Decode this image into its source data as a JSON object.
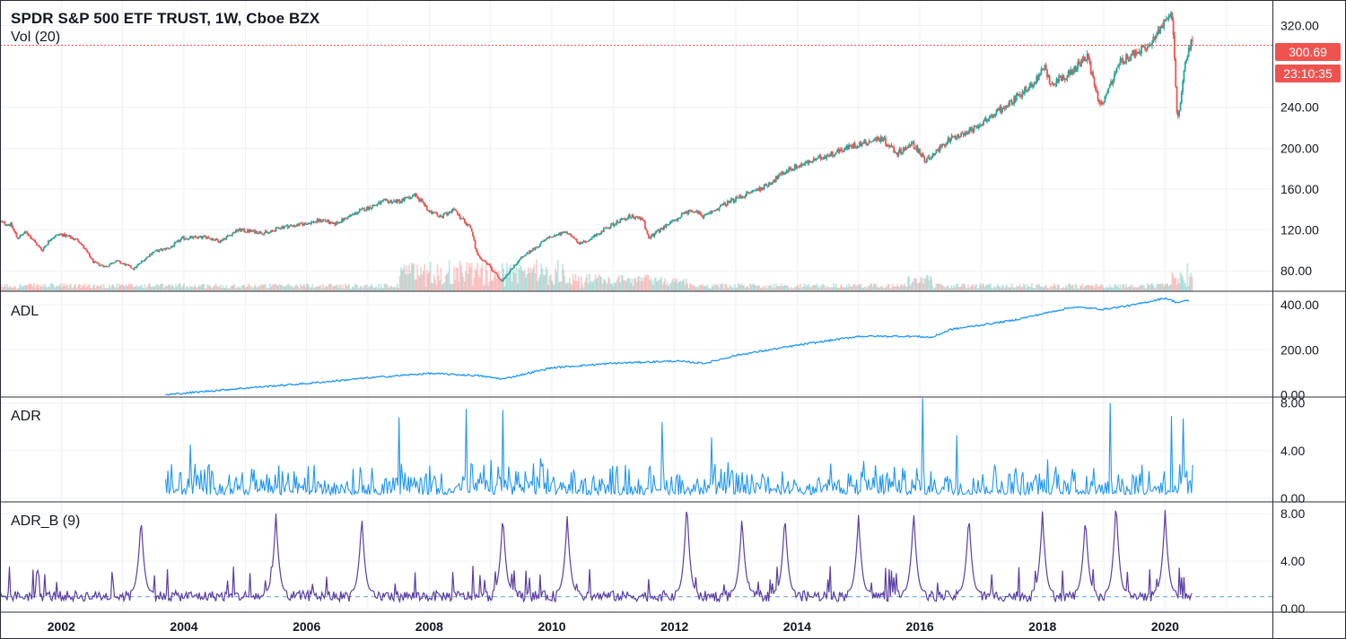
{
  "header": {
    "title": "SPDR S&P 500 ETF TRUST, 1W, Cboe BZX",
    "volume_indicator": "Vol (20)"
  },
  "price_tags": {
    "last_price": "300.69",
    "countdown": "23:10:35",
    "color": "#ef5350"
  },
  "colors": {
    "up": "#26a69a",
    "down": "#ef5350",
    "adl_line": "#2196f3",
    "adr_line": "#2196f3",
    "adrb_line": "#5b3fa3",
    "adrb_baseline": "#5b9bd5",
    "grid": "#edf0f5",
    "border": "#2a2e39"
  },
  "chart_data": [
    {
      "type": "candlestick",
      "name": "price",
      "interval": "1W",
      "ylim": [
        60,
        345
      ],
      "yticks": [
        "80.00",
        "120.00",
        "160.00",
        "200.00",
        "240.00",
        "320.00"
      ],
      "anchors": [
        [
          2001.0,
          128
        ],
        [
          2001.2,
          125
        ],
        [
          2001.3,
          112
        ],
        [
          2001.45,
          118
        ],
        [
          2001.7,
          100
        ],
        [
          2001.85,
          112
        ],
        [
          2002.0,
          116
        ],
        [
          2002.3,
          110
        ],
        [
          2002.55,
          88
        ],
        [
          2002.75,
          84
        ],
        [
          2002.9,
          90
        ],
        [
          2003.1,
          85
        ],
        [
          2003.2,
          82
        ],
        [
          2003.5,
          98
        ],
        [
          2003.8,
          103
        ],
        [
          2004.0,
          112
        ],
        [
          2004.4,
          113
        ],
        [
          2004.6,
          109
        ],
        [
          2004.9,
          120
        ],
        [
          2005.4,
          117
        ],
        [
          2005.6,
          123
        ],
        [
          2005.9,
          125
        ],
        [
          2006.3,
          130
        ],
        [
          2006.45,
          125
        ],
        [
          2006.9,
          139
        ],
        [
          2007.3,
          148
        ],
        [
          2007.55,
          148
        ],
        [
          2007.8,
          155
        ],
        [
          2008.0,
          140
        ],
        [
          2008.2,
          132
        ],
        [
          2008.4,
          140
        ],
        [
          2008.7,
          122
        ],
        [
          2008.8,
          95
        ],
        [
          2008.95,
          88
        ],
        [
          2009.2,
          70
        ],
        [
          2009.5,
          92
        ],
        [
          2009.8,
          105
        ],
        [
          2010.0,
          114
        ],
        [
          2010.3,
          118
        ],
        [
          2010.45,
          106
        ],
        [
          2010.7,
          113
        ],
        [
          2010.9,
          122
        ],
        [
          2011.3,
          134
        ],
        [
          2011.5,
          130
        ],
        [
          2011.6,
          112
        ],
        [
          2011.9,
          125
        ],
        [
          2012.3,
          140
        ],
        [
          2012.5,
          133
        ],
        [
          2012.8,
          144
        ],
        [
          2013.0,
          150
        ],
        [
          2013.5,
          163
        ],
        [
          2013.9,
          180
        ],
        [
          2014.3,
          188
        ],
        [
          2014.8,
          200
        ],
        [
          2015.4,
          210
        ],
        [
          2015.65,
          195
        ],
        [
          2015.9,
          205
        ],
        [
          2016.1,
          188
        ],
        [
          2016.5,
          208
        ],
        [
          2016.9,
          220
        ],
        [
          2017.4,
          240
        ],
        [
          2017.9,
          265
        ],
        [
          2018.05,
          280
        ],
        [
          2018.15,
          263
        ],
        [
          2018.5,
          275
        ],
        [
          2018.75,
          290
        ],
        [
          2018.97,
          240
        ],
        [
          2019.3,
          285
        ],
        [
          2019.6,
          295
        ],
        [
          2019.8,
          302
        ],
        [
          2020.1,
          335
        ],
        [
          2020.15,
          320
        ],
        [
          2020.22,
          225
        ],
        [
          2020.35,
          285
        ],
        [
          2020.45,
          305
        ]
      ],
      "volume": {
        "name": "Vol (20)",
        "ylim_scale": 1.0
      },
      "last_price": 300.69
    },
    {
      "type": "line",
      "name": "ADL",
      "ylim": [
        -10,
        460
      ],
      "yticks": [
        "400.00",
        "200.00",
        "0.00"
      ],
      "x_start": 2003.7,
      "anchors": [
        [
          2003.7,
          0
        ],
        [
          2005.0,
          30
        ],
        [
          2006.0,
          50
        ],
        [
          2007.0,
          75
        ],
        [
          2008.0,
          95
        ],
        [
          2008.8,
          85
        ],
        [
          2009.2,
          70
        ],
        [
          2010.0,
          120
        ],
        [
          2011.0,
          140
        ],
        [
          2012.0,
          150
        ],
        [
          2012.5,
          140
        ],
        [
          2013.0,
          175
        ],
        [
          2014.0,
          220
        ],
        [
          2015.0,
          260
        ],
        [
          2015.9,
          260
        ],
        [
          2016.2,
          255
        ],
        [
          2016.5,
          290
        ],
        [
          2017.5,
          330
        ],
        [
          2018.5,
          390
        ],
        [
          2019.0,
          380
        ],
        [
          2019.5,
          400
        ],
        [
          2020.0,
          430
        ],
        [
          2020.2,
          410
        ],
        [
          2020.4,
          420
        ]
      ]
    },
    {
      "type": "line",
      "name": "ADR",
      "ylim": [
        -0.3,
        8.5
      ],
      "yticks": [
        "8.00",
        "4.00",
        "0.00"
      ],
      "x_start": 2003.7,
      "spikes": [
        [
          2004.1,
          4.5
        ],
        [
          2007.5,
          6.8
        ],
        [
          2008.6,
          7.5
        ],
        [
          2009.2,
          7.4
        ],
        [
          2011.8,
          6.4
        ],
        [
          2012.6,
          5.1
        ],
        [
          2016.05,
          8.4
        ],
        [
          2016.6,
          5.3
        ],
        [
          2019.1,
          8.0
        ],
        [
          2020.1,
          6.9
        ],
        [
          2020.3,
          6.7
        ]
      ]
    },
    {
      "type": "line",
      "name": "ADR_B (9)",
      "ylim": [
        -0.3,
        9.0
      ],
      "yticks": [
        "8.00",
        "4.00",
        "0.00"
      ],
      "baseline": 1.0,
      "spikes": [
        [
          2003.3,
          7.8
        ],
        [
          2005.5,
          8.0
        ],
        [
          2006.9,
          7.8
        ],
        [
          2009.2,
          8.0
        ],
        [
          2009.25,
          3.2
        ],
        [
          2010.25,
          7.8
        ],
        [
          2012.2,
          9.1
        ],
        [
          2013.1,
          7.8
        ],
        [
          2013.8,
          8.0
        ],
        [
          2015.0,
          7.9
        ],
        [
          2015.9,
          8.3
        ],
        [
          2016.8,
          8.0
        ],
        [
          2018.0,
          8.2
        ],
        [
          2018.7,
          7.8
        ],
        [
          2019.2,
          9.2
        ],
        [
          2020.0,
          8.3
        ]
      ]
    }
  ],
  "x_axis": {
    "labels": [
      "2002",
      "2004",
      "2006",
      "2008",
      "2010",
      "2012",
      "2014",
      "2016",
      "2018",
      "2020"
    ],
    "range": [
      2001.0,
      2021.75
    ]
  }
}
